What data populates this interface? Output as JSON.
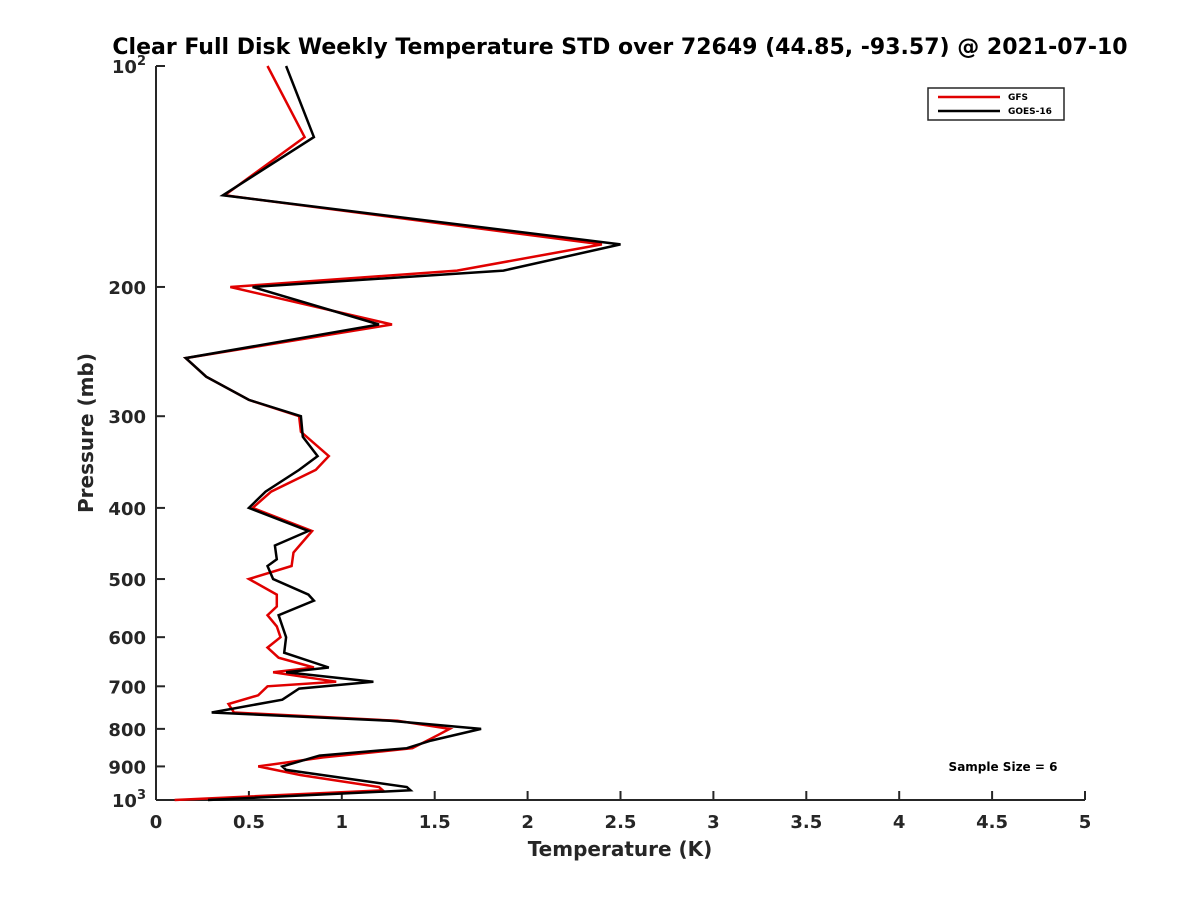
{
  "chart_data": {
    "type": "line",
    "title": "Clear Full Disk Weekly Temperature STD over 72649 (44.85, -93.57) @ 2021-07-10",
    "xlabel": "Temperature (K)",
    "ylabel": "Pressure (mb)",
    "xlim": [
      0,
      5
    ],
    "ylim": [
      100,
      1000
    ],
    "y_scale": "log",
    "y_reversed": true,
    "grid": false,
    "legend_position": "top-right",
    "x_ticks": [
      0,
      0.5,
      1,
      1.5,
      2,
      2.5,
      3,
      3.5,
      4,
      4.5,
      5
    ],
    "x_tick_labels": [
      "0",
      "0.5",
      "1",
      "1.5",
      "2",
      "2.5",
      "3",
      "3.5",
      "4",
      "4.5",
      "5"
    ],
    "y_ticks": [
      100,
      200,
      300,
      400,
      500,
      600,
      700,
      800,
      900,
      1000
    ],
    "y_tick_labels": [
      {
        "base": "10",
        "exp": "2"
      },
      {
        "base": "200",
        "exp": ""
      },
      {
        "base": "300",
        "exp": ""
      },
      {
        "base": "400",
        "exp": ""
      },
      {
        "base": "500",
        "exp": ""
      },
      {
        "base": "600",
        "exp": ""
      },
      {
        "base": "700",
        "exp": ""
      },
      {
        "base": "800",
        "exp": ""
      },
      {
        "base": "900",
        "exp": ""
      },
      {
        "base": "10",
        "exp": "3"
      }
    ],
    "annotation": "Sample Size = 6",
    "series": [
      {
        "name": "GFS",
        "color": "#e00000",
        "points": [
          [
            0.6,
            100
          ],
          [
            0.8,
            125
          ],
          [
            0.37,
            150
          ],
          [
            2.4,
            175
          ],
          [
            1.62,
            190
          ],
          [
            0.4,
            200
          ],
          [
            1.27,
            225
          ],
          [
            0.16,
            250
          ],
          [
            0.27,
            265
          ],
          [
            0.5,
            285
          ],
          [
            0.77,
            300
          ],
          [
            0.78,
            315
          ],
          [
            0.93,
            340
          ],
          [
            0.86,
            355
          ],
          [
            0.62,
            380
          ],
          [
            0.52,
            400
          ],
          [
            0.84,
            430
          ],
          [
            0.74,
            460
          ],
          [
            0.73,
            480
          ],
          [
            0.5,
            500
          ],
          [
            0.65,
            525
          ],
          [
            0.65,
            545
          ],
          [
            0.6,
            560
          ],
          [
            0.65,
            580
          ],
          [
            0.67,
            600
          ],
          [
            0.6,
            620
          ],
          [
            0.66,
            640
          ],
          [
            0.85,
            660
          ],
          [
            0.63,
            670
          ],
          [
            0.97,
            690
          ],
          [
            0.6,
            700
          ],
          [
            0.55,
            720
          ],
          [
            0.39,
            740
          ],
          [
            0.42,
            760
          ],
          [
            1.3,
            780
          ],
          [
            1.58,
            800
          ],
          [
            1.52,
            815
          ],
          [
            1.38,
            850
          ],
          [
            0.9,
            875
          ],
          [
            0.55,
            900
          ],
          [
            0.78,
            925
          ],
          [
            1.2,
            960
          ],
          [
            1.22,
            970
          ],
          [
            0.1,
            1000
          ]
        ]
      },
      {
        "name": "GOES-16",
        "color": "#000000",
        "points": [
          [
            0.7,
            100
          ],
          [
            0.85,
            125
          ],
          [
            0.36,
            150
          ],
          [
            2.5,
            175
          ],
          [
            1.87,
            190
          ],
          [
            0.52,
            200
          ],
          [
            1.2,
            225
          ],
          [
            0.16,
            250
          ],
          [
            0.27,
            265
          ],
          [
            0.5,
            285
          ],
          [
            0.78,
            300
          ],
          [
            0.79,
            320
          ],
          [
            0.87,
            340
          ],
          [
            0.77,
            355
          ],
          [
            0.59,
            380
          ],
          [
            0.5,
            400
          ],
          [
            0.82,
            430
          ],
          [
            0.64,
            450
          ],
          [
            0.65,
            470
          ],
          [
            0.6,
            480
          ],
          [
            0.63,
            500
          ],
          [
            0.82,
            525
          ],
          [
            0.85,
            535
          ],
          [
            0.66,
            560
          ],
          [
            0.67,
            570
          ],
          [
            0.7,
            600
          ],
          [
            0.69,
            630
          ],
          [
            0.93,
            660
          ],
          [
            0.7,
            670
          ],
          [
            1.17,
            690
          ],
          [
            0.77,
            705
          ],
          [
            0.68,
            730
          ],
          [
            0.3,
            760
          ],
          [
            1.26,
            780
          ],
          [
            1.75,
            800
          ],
          [
            1.48,
            830
          ],
          [
            1.35,
            850
          ],
          [
            0.88,
            870
          ],
          [
            0.68,
            900
          ],
          [
            0.7,
            910
          ],
          [
            1.35,
            960
          ],
          [
            1.37,
            970
          ],
          [
            0.28,
            1000
          ]
        ]
      }
    ]
  }
}
